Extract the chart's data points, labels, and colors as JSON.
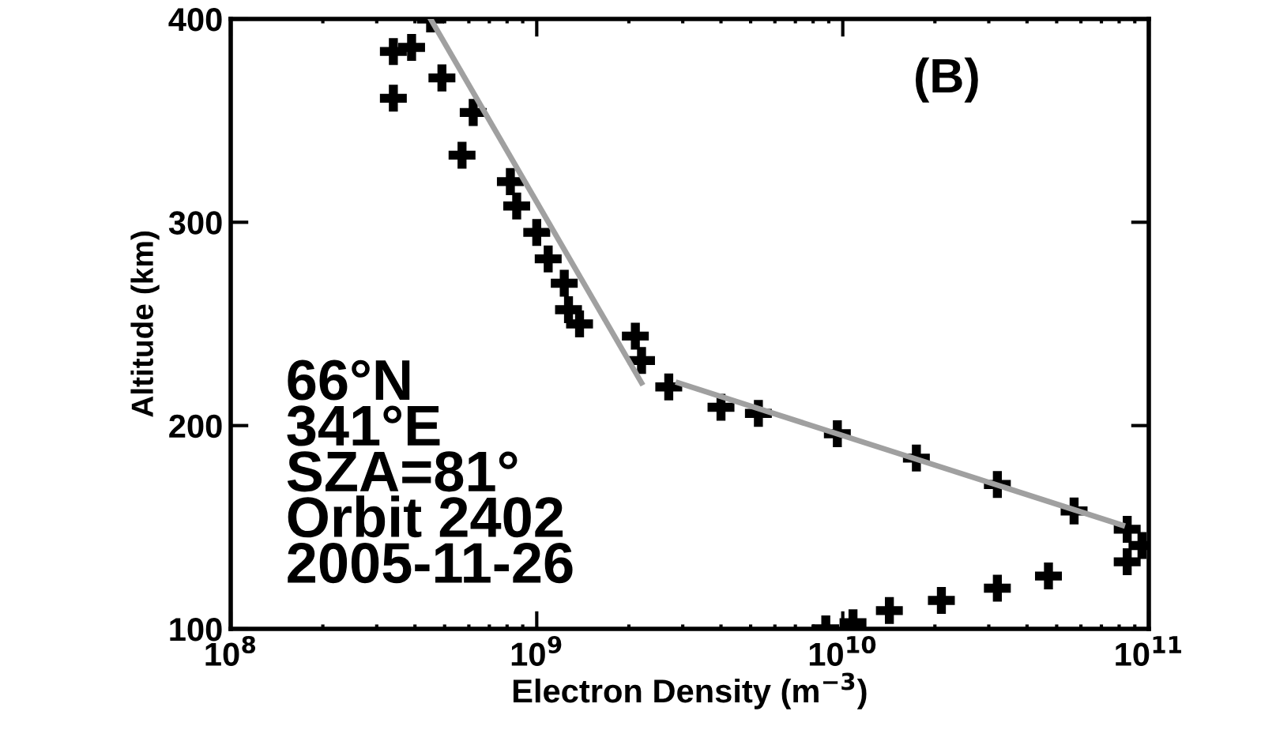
{
  "chart_data": {
    "type": "scatter",
    "xlabel": "Electron Density (m$^{−3}$)",
    "ylabel": "Altitude (km)",
    "log": "x",
    "xlim": [
      100000000.0,
      100000000000.0
    ],
    "ylim": [
      100,
      400
    ],
    "xticks": [
      {
        "value": 100000000.0,
        "label": "10$^{8}$"
      },
      {
        "value": 1000000000.0,
        "label": "10$^{9}$"
      },
      {
        "value": 10000000000.0,
        "label": "10$^{10}$"
      },
      {
        "value": 100000000000.0,
        "label": "10$^{11}$"
      }
    ],
    "yticks": [
      100,
      200,
      300,
      400
    ],
    "grid": false,
    "annotations": [
      "(B)",
      "66°N",
      "341°E",
      "SZA=81°",
      "Orbit 2402",
      "2005-11-26"
    ],
    "series": [
      {
        "marker": "cross",
        "color": "#000000",
        "x": [
          450000000.0,
          390000000.0,
          340000000.0,
          490000000.0,
          340000000.0,
          620000000.0,
          570000000.0,
          820000000.0,
          860000000.0,
          1000000000.0,
          1090000000.0,
          1230000000.0,
          1270000000.0,
          1380000000.0,
          2100000000.0,
          2200000000.0,
          2700000000.0,
          4000000000.0,
          5300000000.0,
          9600000000.0,
          17400000000.0,
          32000000000.0,
          57000000000.0,
          85000000000.0,
          95000000000.0,
          85000000000.0,
          47000000000.0,
          32000000000.0,
          21000000000.0,
          14200000000.0,
          10800000000.0,
          8800000000.0
        ],
        "values": [
          400,
          386,
          384,
          371,
          361,
          354,
          333,
          320,
          308,
          295,
          282,
          270,
          257,
          250,
          244,
          232,
          219,
          209,
          206,
          196,
          184,
          171,
          158,
          149,
          141,
          133,
          126,
          120,
          114,
          109,
          103,
          100
        ]
      },
      {
        "type": "line",
        "color": "#a0a0a0",
        "x": [
          450000000.0,
          2200000000.0
        ],
        "values": [
          400,
          221
        ]
      },
      {
        "type": "line",
        "color": "#a0a0a0",
        "x": [
          2900000000.0,
          82000000000.0
        ],
        "values": [
          221,
          151
        ]
      }
    ]
  }
}
